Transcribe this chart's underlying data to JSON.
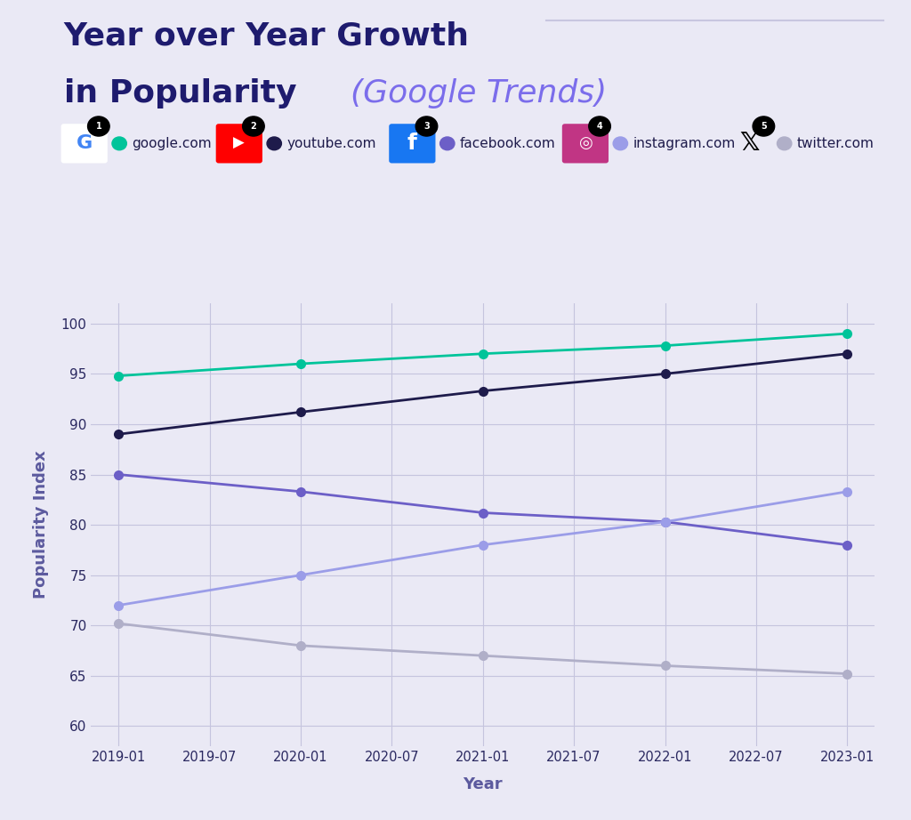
{
  "title_line1": "Year over Year Growth",
  "title_line2_dark": "in Popularity ",
  "title_line2_light": "(Google Trends)",
  "bg_color": "#eae9f5",
  "plot_bg_color": "#eae9f5",
  "grid_color": "#c5c4de",
  "x_labels": [
    "2019-01",
    "2019-07",
    "2020-01",
    "2020-07",
    "2021-01",
    "2021-07",
    "2022-01",
    "2022-07",
    "2023-01"
  ],
  "y_ticks": [
    60,
    65,
    70,
    75,
    80,
    85,
    90,
    95,
    100
  ],
  "ylim": [
    58,
    102
  ],
  "series": [
    {
      "label": "google.com",
      "color": "#00c49a",
      "data": [
        94.8,
        96.0,
        97.0,
        97.8,
        99.0
      ]
    },
    {
      "label": "youtube.com",
      "color": "#1e1b4b",
      "data": [
        89.0,
        91.2,
        93.3,
        95.0,
        97.0
      ]
    },
    {
      "label": "facebook.com",
      "color": "#6c5fc7",
      "data": [
        85.0,
        83.3,
        81.2,
        80.3,
        78.0
      ]
    },
    {
      "label": "instagram.com",
      "color": "#9b9de8",
      "data": [
        72.0,
        75.0,
        78.0,
        80.3,
        83.3
      ]
    },
    {
      "label": "twitter.com",
      "color": "#b0afc8",
      "data": [
        70.2,
        68.0,
        67.0,
        66.0,
        65.2
      ]
    }
  ],
  "x_data_indices": [
    0,
    2,
    4,
    6,
    8
  ],
  "xlabel": "Year",
  "ylabel": "Popularity Index",
  "title_color_dark": "#1e1b6e",
  "title_color_light": "#7b6deb",
  "axis_label_color": "#5c5a9e",
  "tick_color": "#2a2860",
  "legend_dot_colors": [
    "#00c49a",
    "#1e1b4b",
    "#6c5fc7",
    "#9b9de8",
    "#b0afc8"
  ],
  "legend_labels": [
    "google.com",
    "youtube.com",
    "facebook.com",
    "instagram.com",
    "twitter.com"
  ],
  "line_color_top": "#c8c6e0"
}
